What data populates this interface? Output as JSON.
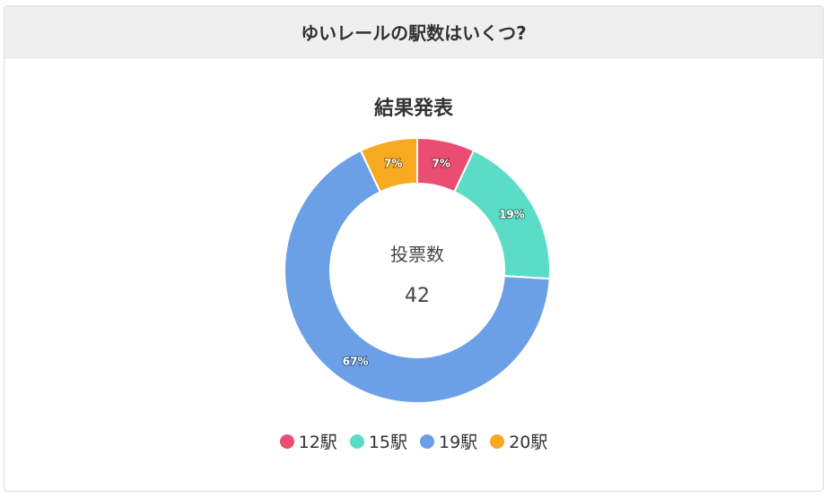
{
  "header": {
    "question": "ゆいレールの駅数はいくつ?"
  },
  "chart_data": {
    "type": "pie",
    "title": "結果発表",
    "center_label": "投票数",
    "center_value": "42",
    "categories": [
      "12駅",
      "15駅",
      "19駅",
      "20駅"
    ],
    "values": [
      7,
      19,
      67,
      7
    ],
    "value_labels": [
      "7%",
      "19%",
      "67%",
      "7%"
    ],
    "colors": [
      "#ea4d72",
      "#5bdcc6",
      "#6ba0e6",
      "#f7a920"
    ],
    "legend_position": "bottom"
  }
}
